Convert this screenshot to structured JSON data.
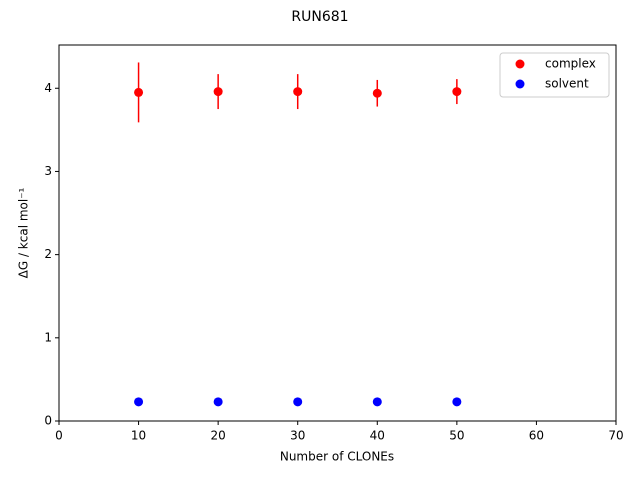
{
  "chart_data": {
    "type": "scatter",
    "title": "RUN681",
    "x_label": "Number of CLONEs",
    "y_label": "ΔG / kcal mol⁻¹",
    "x": [
      10,
      20,
      30,
      40,
      50
    ],
    "series": [
      {
        "name": "complex",
        "color": "#ff0000",
        "values": [
          3.95,
          3.96,
          3.96,
          3.94,
          3.96
        ],
        "errors": [
          0.36,
          0.21,
          0.21,
          0.16,
          0.15
        ]
      },
      {
        "name": "solvent",
        "color": "#0000ff",
        "values": [
          0.23,
          0.23,
          0.23,
          0.23,
          0.23
        ]
      }
    ],
    "xlim": [
      0,
      70
    ],
    "xticks": [
      0,
      10,
      20,
      30,
      40,
      50,
      60,
      70
    ],
    "ylim": [
      0,
      4.52
    ],
    "yticks": [
      0,
      1,
      2,
      3,
      4
    ],
    "grid": false,
    "legend": "upper right"
  }
}
